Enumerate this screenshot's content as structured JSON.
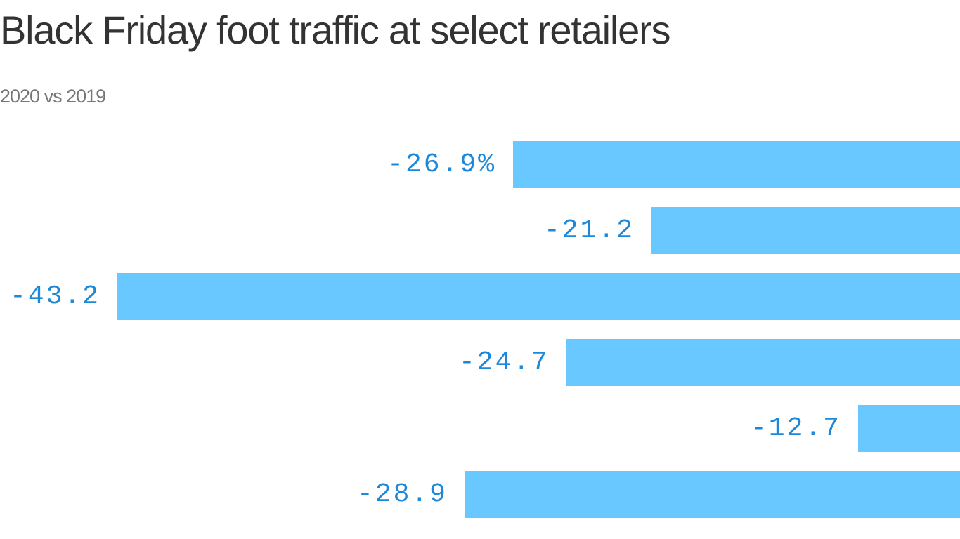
{
  "header": {
    "title": "Black Friday foot traffic at select retailers",
    "subtitle": "2020 vs 2019"
  },
  "style": {
    "bar_color": "#69c8ff",
    "label_color": "#1e88d8",
    "title_color": "#333333",
    "subtitle_color": "#777777"
  },
  "chart_data": {
    "type": "bar",
    "orientation": "horizontal",
    "title": "Black Friday foot traffic at select retailers",
    "subtitle": "2020 vs 2019",
    "xlabel": "",
    "ylabel": "",
    "categories": [
      "",
      "",
      "",
      "",
      "",
      ""
    ],
    "values": [
      -26.9,
      -21.2,
      -43.2,
      -24.7,
      -12.7,
      -28.9
    ],
    "labels": [
      "-26.9%",
      "-21.2",
      "-43.2",
      "-24.7",
      "-12.7",
      "-28.9"
    ],
    "unit": "%",
    "grid": false,
    "legend": null,
    "note": "Bars extend rightward past the visible frame; category names are cropped out of view."
  }
}
